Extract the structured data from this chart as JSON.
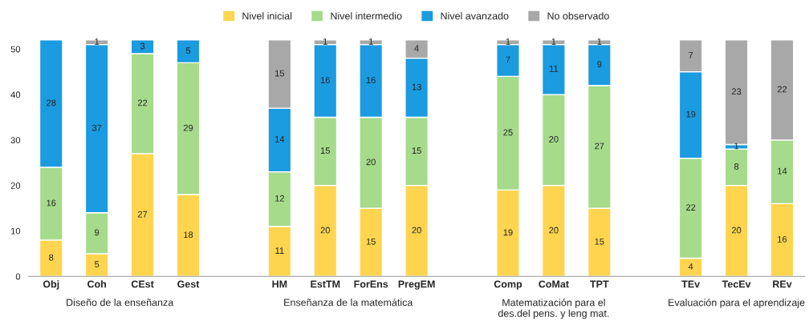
{
  "chart_data": {
    "type": "bar",
    "stacked": true,
    "categories": [
      "Obj",
      "Coh",
      "CEst",
      "Gest",
      null,
      "HM",
      "EstTM",
      "ForEns",
      "PregEM",
      null,
      "Comp",
      "CoMat",
      "TPT",
      null,
      "TEv",
      "TecEv",
      "REv"
    ],
    "series": [
      {
        "name": "Nivel inicial",
        "color": "#ffd54f",
        "values": [
          8,
          5,
          27,
          18,
          null,
          11,
          20,
          15,
          20,
          null,
          19,
          20,
          15,
          null,
          4,
          20,
          16
        ]
      },
      {
        "name": "Nivel intermedio",
        "color": "#a5db8a",
        "values": [
          16,
          9,
          22,
          29,
          null,
          12,
          15,
          20,
          15,
          null,
          25,
          20,
          27,
          null,
          22,
          8,
          14
        ]
      },
      {
        "name": "Nivel avanzado",
        "color": "#1b9be0",
        "values": [
          28,
          37,
          3,
          5,
          null,
          14,
          16,
          16,
          13,
          null,
          7,
          11,
          9,
          null,
          19,
          1,
          null
        ]
      },
      {
        "name": "No observado",
        "color": "#a8a8a8",
        "values": [
          null,
          1,
          null,
          null,
          null,
          15,
          1,
          1,
          4,
          null,
          1,
          1,
          1,
          null,
          7,
          23,
          22
        ]
      }
    ],
    "ylim": [
      0,
      52
    ],
    "yticks": [
      0,
      10,
      20,
      30,
      40,
      50
    ],
    "data_labels": true,
    "legend": "top",
    "grid": false,
    "annotations": [
      "Diseño de la enseñanza",
      "Enseñanza de la matemática",
      "Matematización para el\ndes.del pens. y leng mat.",
      "Evaluación para el aprendizaje"
    ]
  }
}
